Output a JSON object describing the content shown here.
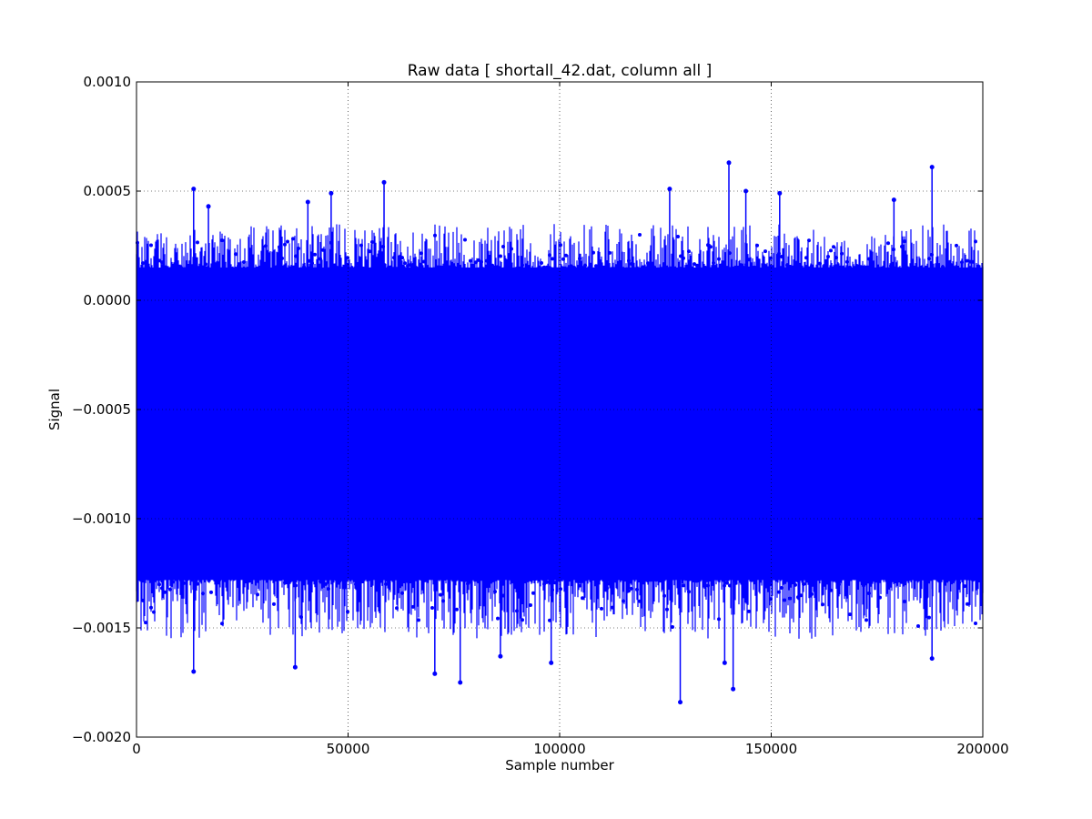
{
  "chart_data": {
    "type": "line",
    "title": "Raw data  [ shortall_42.dat, column all ]",
    "xlabel": "Sample number",
    "ylabel": "Signal",
    "xlim": [
      0,
      200000
    ],
    "ylim": [
      -0.002,
      0.001
    ],
    "x_ticks": [
      0,
      50000,
      100000,
      150000,
      200000
    ],
    "x_tick_labels": [
      "0",
      "50000",
      "100000",
      "150000",
      "200000"
    ],
    "y_ticks": [
      -0.002,
      -0.0015,
      -0.001,
      -0.0005,
      0.0,
      0.0005,
      0.001
    ],
    "y_tick_labels": [
      "−0.0020",
      "−0.0015",
      "−0.0010",
      "−0.0005",
      "0.0000",
      "0.0005",
      "0.0010"
    ],
    "grid": true,
    "series": [
      {
        "color": "#0000ff",
        "marker": "dot",
        "n_points": 200000,
        "band_low": -0.00128,
        "band_high": 0.00015,
        "envelope_x": [
          0,
          10000,
          20000,
          30000,
          40000,
          50000,
          60000,
          70000,
          80000,
          90000,
          100000,
          110000,
          120000,
          130000,
          140000,
          150000,
          160000,
          170000,
          180000,
          190000,
          200000
        ],
        "envelope_max": [
          0.00036,
          0.00031,
          0.0004,
          0.0004,
          0.00045,
          0.00049,
          0.00054,
          0.00038,
          0.00036,
          0.00044,
          0.00038,
          0.00045,
          0.0003,
          0.00051,
          0.00063,
          0.0005,
          0.00033,
          0.00028,
          0.0004,
          0.00061,
          0.00038
        ],
        "envelope_min": [
          -0.0015,
          -0.00162,
          -0.00157,
          -0.00155,
          -0.00168,
          -0.00161,
          -0.00163,
          -0.00171,
          -0.00175,
          -0.00161,
          -0.00166,
          -0.00164,
          -0.00157,
          -0.00184,
          -0.00178,
          -0.00162,
          -0.00158,
          -0.00164,
          -0.00162,
          -0.00164,
          -0.00152
        ],
        "spikes": [
          {
            "x": 13500,
            "y": 0.00051
          },
          {
            "x": 17000,
            "y": 0.00043
          },
          {
            "x": 40500,
            "y": 0.00045
          },
          {
            "x": 46000,
            "y": 0.00049
          },
          {
            "x": 58500,
            "y": 0.00054
          },
          {
            "x": 126000,
            "y": 0.00051
          },
          {
            "x": 140000,
            "y": 0.00063
          },
          {
            "x": 144000,
            "y": 0.0005
          },
          {
            "x": 152000,
            "y": 0.00049
          },
          {
            "x": 179000,
            "y": 0.00046
          },
          {
            "x": 188000,
            "y": 0.00061
          },
          {
            "x": 13500,
            "y": -0.0017
          },
          {
            "x": 37500,
            "y": -0.00168
          },
          {
            "x": 70500,
            "y": -0.00171
          },
          {
            "x": 76500,
            "y": -0.00175
          },
          {
            "x": 86000,
            "y": -0.00163
          },
          {
            "x": 98000,
            "y": -0.00166
          },
          {
            "x": 128500,
            "y": -0.00184
          },
          {
            "x": 141000,
            "y": -0.00178
          },
          {
            "x": 139000,
            "y": -0.00166
          },
          {
            "x": 188000,
            "y": -0.00164
          }
        ]
      }
    ]
  }
}
